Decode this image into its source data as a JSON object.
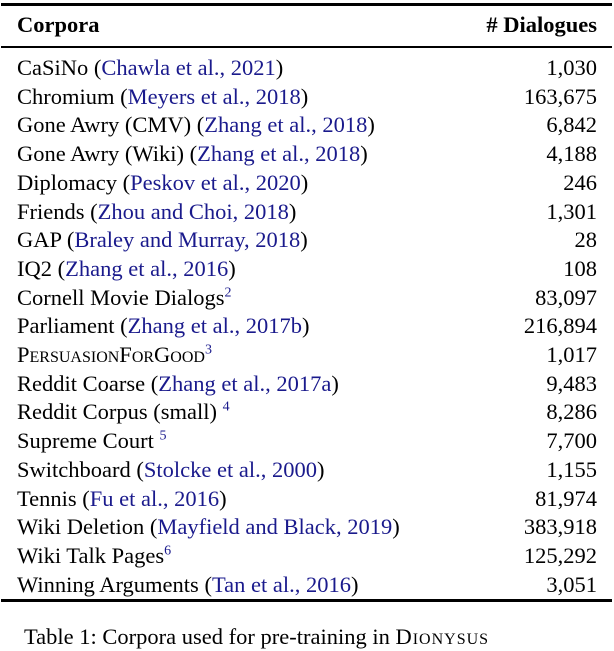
{
  "table": {
    "headers": {
      "corpora": "Corpora",
      "dialogues": "# Dialogues"
    },
    "rows": [
      {
        "name": "CaSiNo",
        "open": " (",
        "cite": "Chawla et al., 2021",
        "close": ")",
        "sup": "",
        "count": "1,030"
      },
      {
        "name": "Chromium",
        "open": " (",
        "cite": "Meyers et al., 2018",
        "close": ")",
        "sup": "",
        "count": "163,675"
      },
      {
        "name": "Gone Awry (CMV)",
        "open": " (",
        "cite": "Zhang et al., 2018",
        "close": ")",
        "sup": "",
        "count": "6,842"
      },
      {
        "name": "Gone Awry (Wiki)",
        "open": " (",
        "cite": "Zhang et al., 2018",
        "close": ")",
        "sup": "",
        "count": "4,188"
      },
      {
        "name": "Diplomacy",
        "open": " (",
        "cite": "Peskov et al., 2020",
        "close": ")",
        "sup": "",
        "count": "246"
      },
      {
        "name": "Friends",
        "open": " (",
        "cite": "Zhou and Choi, 2018",
        "close": ")",
        "sup": "",
        "count": "1,301"
      },
      {
        "name": "GAP",
        "open": " (",
        "cite": "Braley and Murray, 2018",
        "close": ")",
        "sup": "",
        "count": "28"
      },
      {
        "name": "IQ2",
        "open": " (",
        "cite": "Zhang et al., 2016",
        "close": ")",
        "sup": "",
        "count": "108"
      },
      {
        "name": "Cornell Movie Dialogs",
        "open": "",
        "cite": "",
        "close": "",
        "sup": "2",
        "count": "83,097"
      },
      {
        "name": "Parliament",
        "open": " (",
        "cite": "Zhang et al., 2017b",
        "close": ")",
        "sup": "",
        "count": "216,894"
      },
      {
        "name": "PersuasionForGood",
        "open": "",
        "cite": "",
        "close": "",
        "sup": "3",
        "count": "1,017",
        "smallcaps": true
      },
      {
        "name": "Reddit Coarse",
        "open": " (",
        "cite": "Zhang et al., 2017a",
        "close": ")",
        "sup": "",
        "count": "9,483"
      },
      {
        "name": "Reddit Corpus (small) ",
        "open": "",
        "cite": "",
        "close": "",
        "sup": "4",
        "count": "8,286"
      },
      {
        "name": "Supreme Court ",
        "open": "",
        "cite": "",
        "close": "",
        "sup": "5",
        "count": "7,700"
      },
      {
        "name": "Switchboard",
        "open": " (",
        "cite": "Stolcke et al., 2000",
        "close": ")",
        "sup": "",
        "count": "1,155"
      },
      {
        "name": "Tennis",
        "open": " (",
        "cite": "Fu et al., 2016",
        "close": ")",
        "sup": "",
        "count": "81,974"
      },
      {
        "name": "Wiki Deletion",
        "open": " (",
        "cite": "Mayfield and Black, 2019",
        "close": ")",
        "sup": "",
        "count": "383,918"
      },
      {
        "name": "Wiki Talk Pages",
        "open": "",
        "cite": "",
        "close": "",
        "sup": "6",
        "count": "125,292"
      },
      {
        "name": "Winning Arguments",
        "open": " (",
        "cite": "Tan et al., 2016",
        "close": ")",
        "sup": "",
        "count": "3,051"
      }
    ]
  },
  "caption": {
    "prefix": "Table 1: Corpora",
    "middle": " used for pre-training in ",
    "system": "Dionysus"
  }
}
